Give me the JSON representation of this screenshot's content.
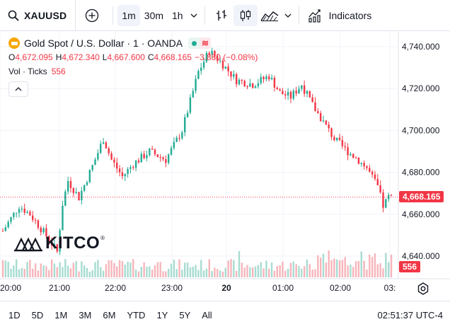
{
  "toolbar": {
    "symbol": "XAUUSD",
    "intervals": [
      {
        "label": "1m",
        "active": true
      },
      {
        "label": "30m",
        "active": false
      },
      {
        "label": "1h",
        "active": false
      }
    ],
    "indicators_label": "Indicators"
  },
  "legend": {
    "title": "Gold Spot / U.S. Dollar · 1 · OANDA",
    "open_key": "O",
    "open": "4,672.095",
    "high_key": "H",
    "high": "4,672.340",
    "low_key": "L",
    "low": "4,667.600",
    "close_key": "C",
    "close": "4,668.165",
    "change": "−3.880 (−0.08%)",
    "volume_label": "Vol · Ticks",
    "volume_value": "556"
  },
  "watermark": {
    "brand": "KITCO",
    "registered": "®"
  },
  "price_scale": {
    "ticks": [
      "4,740.000",
      "4,720.000",
      "4,700.000",
      "4,680.000",
      "4,660.000",
      "4,640.000"
    ],
    "current_price": "4,668.165",
    "current_volume": "556"
  },
  "time_axis": {
    "labels": [
      "20:00",
      "21:00",
      "22:00",
      "23:00",
      "20",
      "01:00",
      "02:00",
      "03:"
    ]
  },
  "bottom": {
    "ranges": [
      "1D",
      "5D",
      "1M",
      "3M",
      "6M",
      "YTD",
      "1Y",
      "5Y",
      "All"
    ],
    "clock": "02:51:37 UTC-4"
  },
  "colors": {
    "up": "#22ab94",
    "down": "#f23645",
    "up_vol": "#a7dcd1",
    "down_vol": "#f7b5bb",
    "accent": "#2962ff"
  },
  "chart_data": {
    "type": "candlestick",
    "symbol": "XAUUSD",
    "ylim": [
      4630,
      4745
    ],
    "price_ticks": [
      4640,
      4660,
      4680,
      4700,
      4720,
      4740
    ],
    "time_labels": [
      "20:00",
      "21:00",
      "22:00",
      "23:00",
      "20",
      "01:00",
      "02:00",
      "03:"
    ],
    "last_price": 4668.165,
    "last_volume": 556,
    "close_path": [
      [
        0,
        4652
      ],
      [
        6,
        4664
      ],
      [
        10,
        4660
      ],
      [
        13,
        4655
      ],
      [
        17,
        4648
      ],
      [
        20,
        4642
      ],
      [
        22,
        4665
      ],
      [
        24,
        4676
      ],
      [
        28,
        4668
      ],
      [
        33,
        4683
      ],
      [
        37,
        4696
      ],
      [
        40,
        4686
      ],
      [
        44,
        4678
      ],
      [
        48,
        4684
      ],
      [
        54,
        4690
      ],
      [
        60,
        4686
      ],
      [
        66,
        4700
      ],
      [
        72,
        4728
      ],
      [
        76,
        4738
      ],
      [
        80,
        4733
      ],
      [
        86,
        4724
      ],
      [
        92,
        4722
      ],
      [
        98,
        4726
      ],
      [
        102,
        4718
      ],
      [
        106,
        4716
      ],
      [
        110,
        4722
      ],
      [
        114,
        4712
      ],
      [
        118,
        4704
      ],
      [
        122,
        4696
      ],
      [
        126,
        4691
      ],
      [
        130,
        4687
      ],
      [
        134,
        4682
      ],
      [
        138,
        4673
      ],
      [
        140,
        4664
      ],
      [
        142,
        4668
      ]
    ]
  }
}
